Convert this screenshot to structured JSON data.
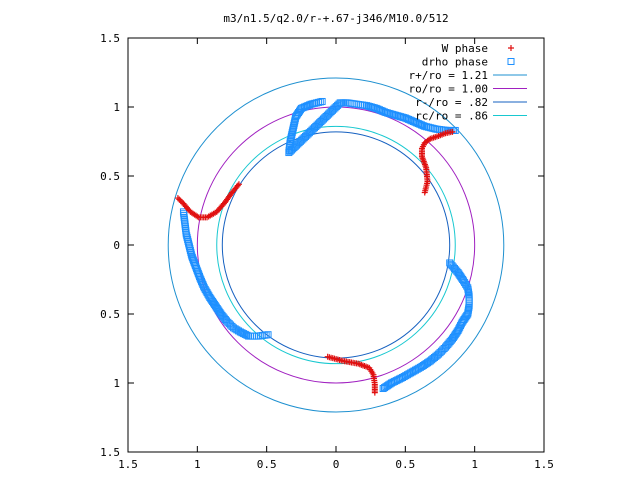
{
  "chart_data": {
    "type": "scatter",
    "title": "m3/n1.5/q2.0/r-+.67-j346/M10.0/512",
    "xlabel": "",
    "ylabel": "",
    "xlim": [
      -1.5,
      1.5
    ],
    "ylim": [
      -1.5,
      1.5
    ],
    "x_ticks": [
      {
        "value": -1.5,
        "label": "1.5"
      },
      {
        "value": -1.0,
        "label": "1"
      },
      {
        "value": -0.5,
        "label": "0.5"
      },
      {
        "value": 0,
        "label": "0"
      },
      {
        "value": 0.5,
        "label": "0.5"
      },
      {
        "value": 1.0,
        "label": "1"
      },
      {
        "value": 1.5,
        "label": "1.5"
      }
    ],
    "y_ticks": [
      {
        "value": 1.5,
        "label": "1.5"
      },
      {
        "value": 1.0,
        "label": "1"
      },
      {
        "value": 0.5,
        "label": "0.5"
      },
      {
        "value": 0,
        "label": "0"
      },
      {
        "value": -0.5,
        "label": "0.5"
      },
      {
        "value": -1.0,
        "label": "1"
      },
      {
        "value": -1.5,
        "label": "1.5"
      }
    ],
    "grid": false,
    "legend_position": "top-right",
    "circles": [
      {
        "name": "r+/ro = 1.21",
        "radius": 1.21,
        "color": "#1e90d0"
      },
      {
        "name": "ro/ro = 1.00",
        "radius": 1.0,
        "color": "#a020c0"
      },
      {
        "name": "r-/ro =  .82",
        "radius": 0.82,
        "color": "#1560c0"
      },
      {
        "name": "rc/ro =  .86",
        "radius": 0.86,
        "color": "#18c8d0"
      }
    ],
    "series": [
      {
        "name": "W phase",
        "marker": "plus",
        "color": "#e01010",
        "arms": [
          [
            [
              0.64,
              0.38
            ],
            [
              0.66,
              0.46
            ],
            [
              0.65,
              0.56
            ],
            [
              0.62,
              0.64
            ],
            [
              0.62,
              0.7
            ],
            [
              0.64,
              0.74
            ],
            [
              0.68,
              0.77
            ],
            [
              0.74,
              0.79
            ],
            [
              0.79,
              0.81
            ],
            [
              0.84,
              0.82
            ]
          ],
          [
            [
              -0.7,
              0.44
            ],
            [
              -0.75,
              0.38
            ],
            [
              -0.8,
              0.31
            ],
            [
              -0.86,
              0.24
            ],
            [
              -0.93,
              0.2
            ],
            [
              -0.99,
              0.2
            ],
            [
              -1.05,
              0.24
            ],
            [
              -1.1,
              0.3
            ],
            [
              -1.14,
              0.34
            ]
          ],
          [
            [
              -0.06,
              -0.81
            ],
            [
              0.05,
              -0.84
            ],
            [
              0.16,
              -0.86
            ],
            [
              0.24,
              -0.89
            ],
            [
              0.27,
              -0.94
            ],
            [
              0.28,
              -1.01
            ],
            [
              0.28,
              -1.07
            ]
          ]
        ]
      },
      {
        "name": "drho phase",
        "marker": "square",
        "color": "#1e90ff",
        "arms": [
          [
            [
              -0.1,
              1.04
            ],
            [
              -0.18,
              1.02
            ],
            [
              -0.25,
              0.99
            ],
            [
              -0.29,
              0.93
            ],
            [
              -0.31,
              0.84
            ],
            [
              -0.33,
              0.75
            ],
            [
              -0.34,
              0.67
            ],
            [
              0.03,
              1.03
            ],
            [
              0.08,
              1.03
            ],
            [
              0.15,
              1.02
            ],
            [
              0.22,
              1.01
            ],
            [
              0.29,
              0.99
            ],
            [
              0.36,
              0.96
            ],
            [
              0.43,
              0.94
            ],
            [
              0.5,
              0.92
            ],
            [
              0.57,
              0.89
            ],
            [
              0.64,
              0.86
            ],
            [
              0.72,
              0.84
            ],
            [
              0.8,
              0.83
            ],
            [
              0.86,
              0.83
            ]
          ],
          [
            [
              0.82,
              -0.13
            ],
            [
              0.88,
              -0.2
            ],
            [
              0.92,
              -0.26
            ],
            [
              0.95,
              -0.31
            ],
            [
              0.96,
              -0.37
            ],
            [
              0.96,
              -0.44
            ],
            [
              0.95,
              -0.5
            ],
            [
              0.91,
              -0.56
            ],
            [
              0.88,
              -0.62
            ],
            [
              0.84,
              -0.68
            ],
            [
              0.79,
              -0.74
            ],
            [
              0.74,
              -0.79
            ],
            [
              0.68,
              -0.84
            ],
            [
              0.62,
              -0.88
            ],
            [
              0.55,
              -0.92
            ],
            [
              0.48,
              -0.96
            ],
            [
              0.4,
              -1.0
            ],
            [
              0.34,
              -1.04
            ]
          ],
          [
            [
              -1.1,
              0.24
            ],
            [
              -1.09,
              0.16
            ],
            [
              -1.08,
              0.08
            ],
            [
              -1.06,
              0.0
            ],
            [
              -1.04,
              -0.08
            ],
            [
              -1.01,
              -0.16
            ],
            [
              -0.98,
              -0.24
            ],
            [
              -0.95,
              -0.31
            ],
            [
              -0.91,
              -0.38
            ],
            [
              -0.87,
              -0.44
            ],
            [
              -0.83,
              -0.5
            ],
            [
              -0.79,
              -0.55
            ],
            [
              -0.74,
              -0.6
            ],
            [
              -0.69,
              -0.63
            ],
            [
              -0.63,
              -0.66
            ],
            [
              -0.56,
              -0.66
            ],
            [
              -0.49,
              -0.65
            ]
          ]
        ]
      }
    ]
  }
}
